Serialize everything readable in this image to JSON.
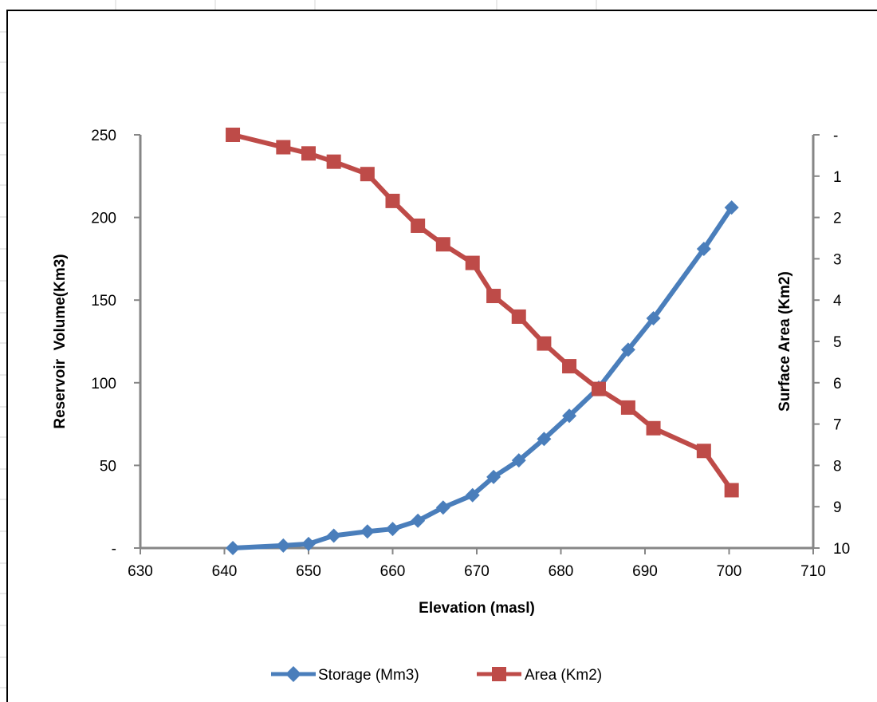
{
  "chart_data": {
    "type": "line",
    "xlabel": "Elevation (masl)",
    "ylabel": "Reservoir  Volume(Km3)",
    "y2label": "Surface Area (Km2)",
    "xlim": [
      630,
      710
    ],
    "x_ticks": [
      "630",
      "640",
      "650",
      "660",
      "670",
      "680",
      "690",
      "700",
      "710"
    ],
    "ylim": [
      0,
      250
    ],
    "y_ticks": [
      "-",
      "50",
      "100",
      "150",
      "200",
      "250"
    ],
    "y2lim": [
      0,
      10
    ],
    "y2_reversed": true,
    "y2_ticks": [
      "-",
      "1",
      "2",
      "3",
      "4",
      "5",
      "6",
      "7",
      "8",
      "9",
      "10"
    ],
    "grid": false,
    "legend_position": "bottom",
    "series": [
      {
        "name": "Storage (Mm3)",
        "axis": "left",
        "color": "#4A7EBB",
        "marker": "diamond",
        "points": [
          [
            641,
            0
          ],
          [
            647,
            1.5
          ],
          [
            650,
            2.5
          ],
          [
            653,
            7.5
          ],
          [
            657,
            10
          ],
          [
            660,
            11.5
          ],
          [
            663,
            16.5
          ],
          [
            666,
            24.5
          ],
          [
            669.5,
            32
          ],
          [
            672,
            43
          ],
          [
            675,
            53
          ],
          [
            678,
            66
          ],
          [
            681,
            80
          ],
          [
            684.5,
            97
          ],
          [
            688,
            120
          ],
          [
            691,
            139
          ],
          [
            697,
            181
          ],
          [
            700.3,
            206
          ]
        ]
      },
      {
        "name": "Area (Km2)",
        "axis": "right",
        "color": "#BE4B48",
        "marker": "square",
        "points": [
          [
            641,
            0
          ],
          [
            647,
            0.3
          ],
          [
            650,
            0.45
          ],
          [
            653,
            0.65
          ],
          [
            657,
            0.95
          ],
          [
            660,
            1.6
          ],
          [
            663,
            2.2
          ],
          [
            666,
            2.65
          ],
          [
            669.5,
            3.1
          ],
          [
            672,
            3.9
          ],
          [
            675,
            4.4
          ],
          [
            678,
            5.05
          ],
          [
            681,
            5.6
          ],
          [
            684.5,
            6.15
          ],
          [
            688,
            6.6
          ],
          [
            691,
            7.1
          ],
          [
            697,
            7.65
          ],
          [
            700.3,
            8.6
          ]
        ]
      }
    ]
  }
}
